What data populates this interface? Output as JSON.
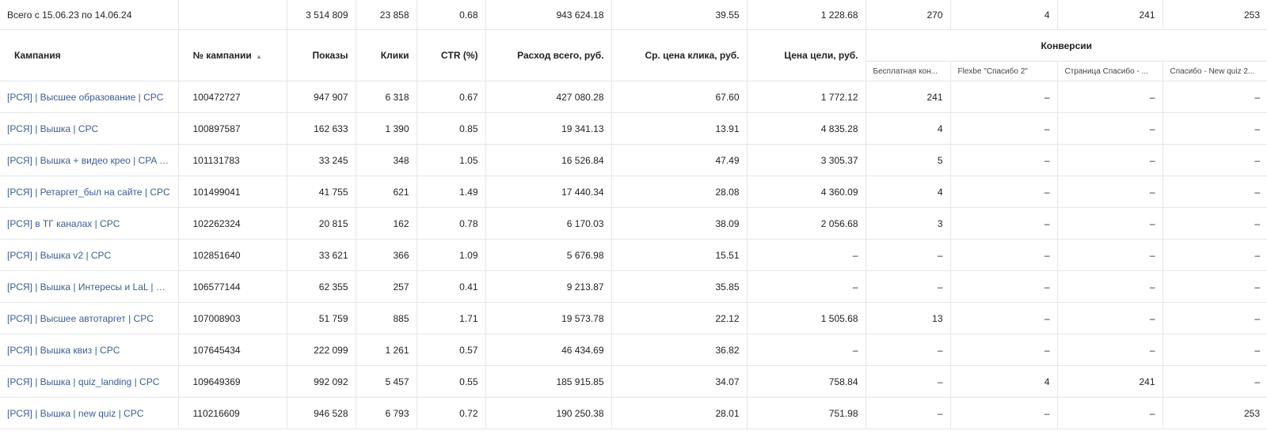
{
  "total": {
    "label": "Всего с 15.06.23 по 14.06.24",
    "shows": "3 514 809",
    "clicks": "23 858",
    "ctr": "0.68",
    "spend": "943 624.18",
    "avg_cpc": "39.55",
    "goal_price": "1 228.68",
    "conv": [
      "270",
      "4",
      "241",
      "253"
    ]
  },
  "headers": {
    "campaign": "Кампания",
    "campaign_id": "№ кампании",
    "sort_icon": "▲",
    "shows": "Показы",
    "clicks": "Клики",
    "ctr": "CTR (%)",
    "spend": "Расход всего, руб.",
    "avg_cpc": "Ср. цена клика, руб.",
    "goal_price": "Цена цели, руб.",
    "conversions": "Конверсии",
    "conv_columns": [
      "Бесплатная кон...",
      "Flexbe \"Спасибо 2\"",
      "Страница Спасибо - ...",
      "Спасибо - New quiz 2..."
    ]
  },
  "rows": [
    {
      "name": "[РСЯ] | Высшее образование | CPC",
      "id": "100472727",
      "shows": "947 907",
      "clicks": "6 318",
      "ctr": "0.67",
      "spend": "427 080.28",
      "avg_cpc": "67.60",
      "goal_price": "1 772.12",
      "conv": [
        "241",
        "–",
        "–",
        "–"
      ]
    },
    {
      "name": "[РСЯ] | Вышка | CPC",
      "id": "100897587",
      "shows": "162 633",
      "clicks": "1 390",
      "ctr": "0.85",
      "spend": "19 341.13",
      "avg_cpc": "13.91",
      "goal_price": "4 835.28",
      "conv": [
        "4",
        "–",
        "–",
        "–"
      ]
    },
    {
      "name": "[РСЯ] | Вышка + видео крео | CPA ДРР",
      "id": "101131783",
      "shows": "33 245",
      "clicks": "348",
      "ctr": "1.05",
      "spend": "16 526.84",
      "avg_cpc": "47.49",
      "goal_price": "3 305.37",
      "conv": [
        "5",
        "–",
        "–",
        "–"
      ]
    },
    {
      "name": "[РСЯ] | Ретаргет_был на сайте | CPC",
      "id": "101499041",
      "shows": "41 755",
      "clicks": "621",
      "ctr": "1.49",
      "spend": "17 440.34",
      "avg_cpc": "28.08",
      "goal_price": "4 360.09",
      "conv": [
        "4",
        "–",
        "–",
        "–"
      ]
    },
    {
      "name": "[РСЯ] в ТГ каналах | CPC",
      "id": "102262324",
      "shows": "20 815",
      "clicks": "162",
      "ctr": "0.78",
      "spend": "6 170.03",
      "avg_cpc": "38.09",
      "goal_price": "2 056.68",
      "conv": [
        "3",
        "–",
        "–",
        "–"
      ]
    },
    {
      "name": "[РСЯ] | Вышка v2 | CPC",
      "id": "102851640",
      "shows": "33 621",
      "clicks": "366",
      "ctr": "1.09",
      "spend": "5 676.98",
      "avg_cpc": "15.51",
      "goal_price": "–",
      "conv": [
        "–",
        "–",
        "–",
        "–"
      ]
    },
    {
      "name": "[РСЯ] | Вышка | Интересы и LaL | CPC",
      "id": "106577144",
      "shows": "62 355",
      "clicks": "257",
      "ctr": "0.41",
      "spend": "9 213.87",
      "avg_cpc": "35.85",
      "goal_price": "–",
      "conv": [
        "–",
        "–",
        "–",
        "–"
      ]
    },
    {
      "name": "[РСЯ] | Высшее автотаргет | CPC",
      "id": "107008903",
      "shows": "51 759",
      "clicks": "885",
      "ctr": "1.71",
      "spend": "19 573.78",
      "avg_cpc": "22.12",
      "goal_price": "1 505.68",
      "conv": [
        "13",
        "–",
        "–",
        "–"
      ]
    },
    {
      "name": "[РСЯ] | Вышка квиз | CPC",
      "id": "107645434",
      "shows": "222 099",
      "clicks": "1 261",
      "ctr": "0.57",
      "spend": "46 434.69",
      "avg_cpc": "36.82",
      "goal_price": "–",
      "conv": [
        "–",
        "–",
        "–",
        "–"
      ]
    },
    {
      "name": "[РСЯ] | Вышка | quiz_landing | CPC",
      "id": "109649369",
      "shows": "992 092",
      "clicks": "5 457",
      "ctr": "0.55",
      "spend": "185 915.85",
      "avg_cpc": "34.07",
      "goal_price": "758.84",
      "conv": [
        "–",
        "4",
        "241",
        "–"
      ]
    },
    {
      "name": "[РСЯ] | Вышка | new quiz | CPC",
      "id": "110216609",
      "shows": "946 528",
      "clicks": "6 793",
      "ctr": "0.72",
      "spend": "190 250.38",
      "avg_cpc": "28.01",
      "goal_price": "751.98",
      "conv": [
        "–",
        "–",
        "–",
        "253"
      ]
    }
  ]
}
